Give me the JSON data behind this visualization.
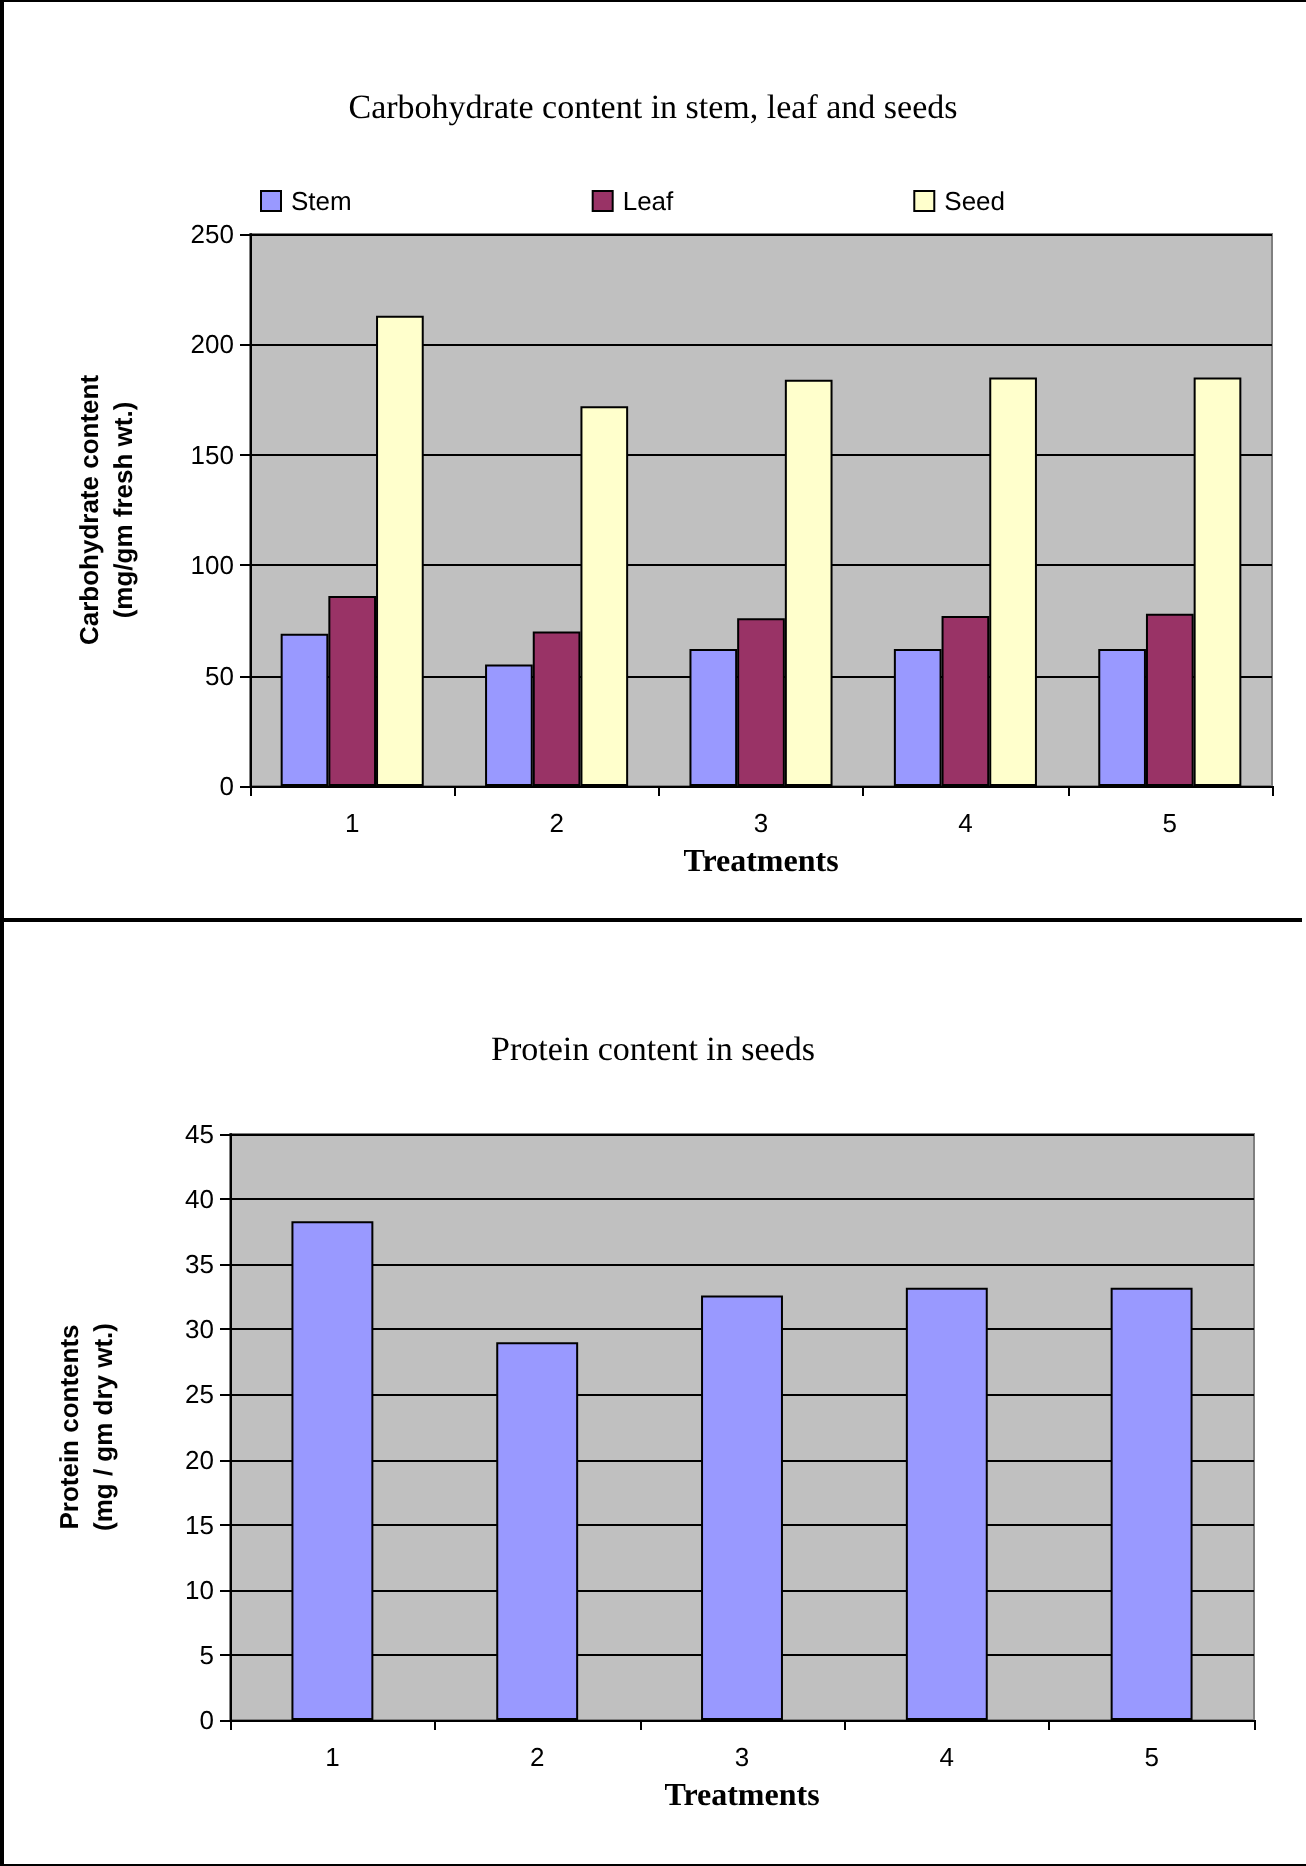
{
  "chart_data": [
    {
      "type": "bar",
      "title": "Carbohydrate content in stem, leaf and seeds",
      "xlabel": "Treatments",
      "ylabel": "Carbohydrate content\n(mg/gm fresh wt.)",
      "categories": [
        "1",
        "2",
        "3",
        "4",
        "5"
      ],
      "series": [
        {
          "name": "Stem",
          "color": "#9999ff",
          "values": [
            69,
            55,
            62,
            62,
            62
          ]
        },
        {
          "name": "Leaf",
          "color": "#993366",
          "values": [
            86,
            70,
            76,
            77,
            78
          ]
        },
        {
          "name": "Seed",
          "color": "#ffffcc",
          "values": [
            213,
            172,
            184,
            185,
            185
          ]
        }
      ],
      "ylim": [
        0,
        250
      ],
      "yticks": [
        0,
        50,
        100,
        150,
        200,
        250
      ],
      "grid": "y",
      "legend": "top"
    },
    {
      "type": "bar",
      "title": "Protein content in seeds",
      "xlabel": "Treatments",
      "ylabel": "Protein contents\n(mg / gm dry wt.)",
      "categories": [
        "1",
        "2",
        "3",
        "4",
        "5"
      ],
      "series": [
        {
          "color": "#9999ff",
          "values": [
            38.3,
            29,
            32.6,
            33.2,
            33.2
          ]
        }
      ],
      "ylim": [
        0,
        45
      ],
      "yticks": [
        0,
        5,
        10,
        15,
        20,
        25,
        30,
        35,
        40,
        45
      ],
      "grid": "y",
      "legend": false
    }
  ]
}
